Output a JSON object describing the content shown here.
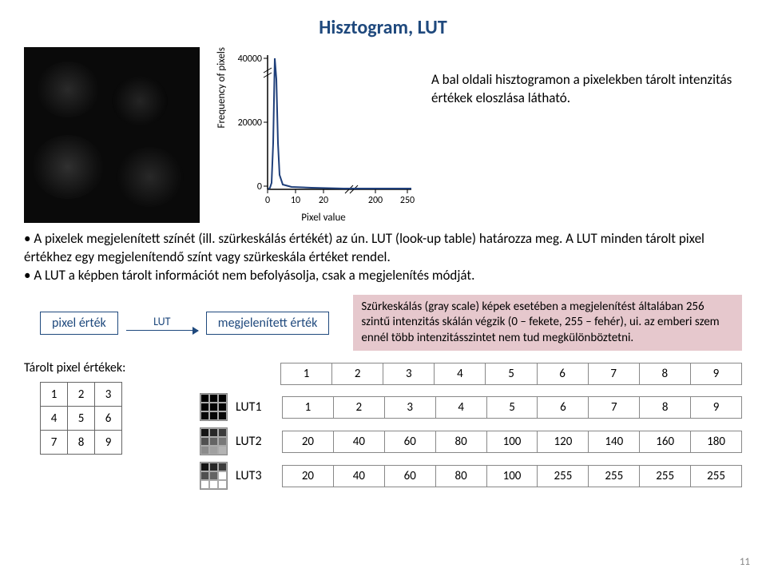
{
  "title": "Hisztogram, LUT",
  "chart": {
    "ylabel": "Frequency of pixels",
    "xlabel": "Pixel value",
    "yticks": [
      "40000",
      "20000",
      "0"
    ],
    "xticks": [
      "0",
      "10",
      "20",
      "200",
      "250"
    ],
    "peak_x": 3,
    "peak_h": 170,
    "tail_h": 4
  },
  "desc": "A bal oldali hisztogramon a pixelekben tárolt intenzitás értékek eloszlása látható.",
  "bullet1": "A pixelek megjelenített színét (ill. szürkeskálás értékét) az ún. LUT (look-up table) határozza meg. A LUT minden tárolt pixel értékhez egy megjelenítendő színt vagy szürkeskála értéket rendel.",
  "bullet2": "A LUT a képben tárolt információt nem befolyásolja, csak a megjelenítés módját.",
  "flow": {
    "left": "pixel érték",
    "arrow": "LUT",
    "right": "megjelenített érték"
  },
  "gray_note": "Szürkeskálás (gray scale) képek esetében a megjelenítést általában 256 szintű intenzitás skálán végzik (0 – fekete, 255 – fehér), ui. az emberi szem ennél több intenzitásszintet nem tud megkülönböztetni.",
  "stored_label": "Tárolt pixel értékek:",
  "stored_values": [
    [
      "1",
      "2",
      "3"
    ],
    [
      "4",
      "5",
      "6"
    ],
    [
      "7",
      "8",
      "9"
    ]
  ],
  "header_vals": [
    "1",
    "2",
    "3",
    "4",
    "5",
    "6",
    "7",
    "8",
    "9"
  ],
  "luts": [
    {
      "name": "LUT1",
      "vals": [
        "1",
        "2",
        "3",
        "4",
        "5",
        "6",
        "7",
        "8",
        "9"
      ],
      "shades": [
        "#000",
        "#010101",
        "#020202",
        "#030303",
        "#040404",
        "#050505",
        "#060606",
        "#070707",
        "#080808"
      ]
    },
    {
      "name": "LUT2",
      "vals": [
        "20",
        "40",
        "60",
        "80",
        "100",
        "120",
        "140",
        "160",
        "180"
      ],
      "shades": [
        "#141414",
        "#282828",
        "#3c3c3c",
        "#505050",
        "#646464",
        "#787878",
        "#8c8c8c",
        "#a0a0a0",
        "#b4b4b4"
      ]
    },
    {
      "name": "LUT3",
      "vals": [
        "20",
        "40",
        "60",
        "80",
        "100",
        "255",
        "255",
        "255",
        "255"
      ],
      "shades": [
        "#141414",
        "#282828",
        "#3c3c3c",
        "#505050",
        "#646464",
        "#ffffff",
        "#ffffff",
        "#ffffff",
        "#ffffff"
      ]
    }
  ],
  "pagenum": "11"
}
